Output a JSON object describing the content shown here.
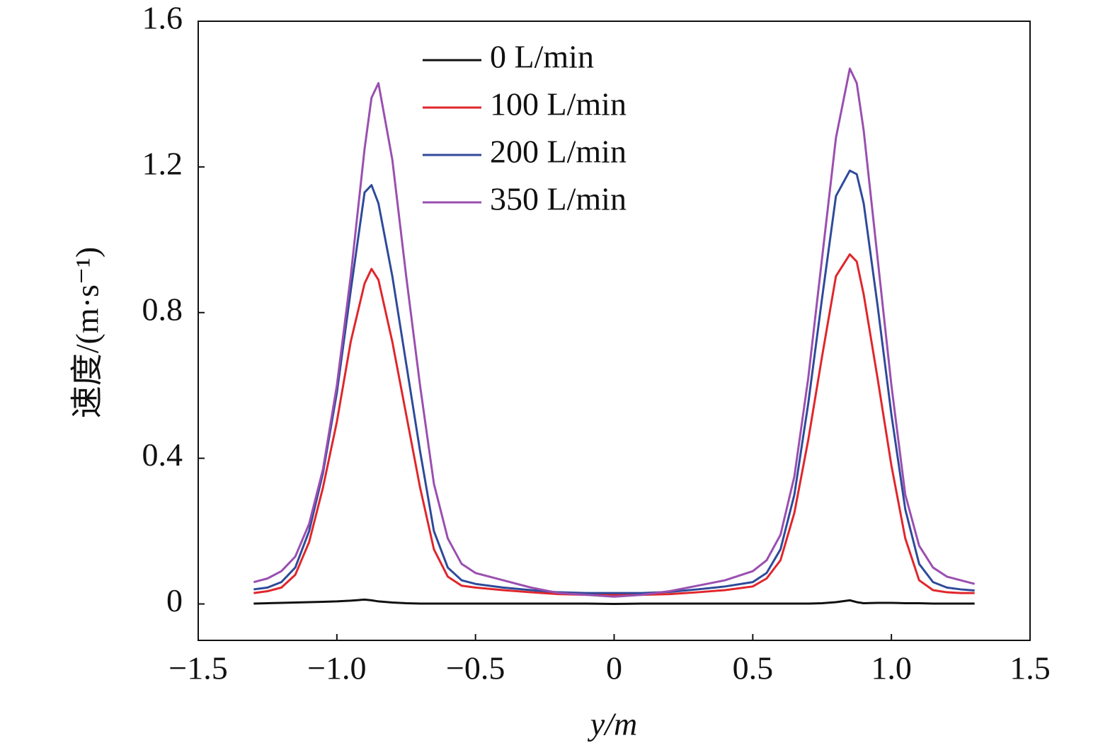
{
  "chart_data": {
    "type": "line",
    "xlabel": "y/m",
    "ylabel": "速度/(m·s⁻¹)",
    "xlim": [
      -1.5,
      1.5
    ],
    "ylim": [
      -0.1,
      1.6
    ],
    "xticks": [
      {
        "value": -1.5,
        "label": "−1.5"
      },
      {
        "value": -1.0,
        "label": "−1.0"
      },
      {
        "value": -0.5,
        "label": "−0.5"
      },
      0,
      0.5,
      {
        "value": 1.0,
        "label": "1.0"
      },
      1.5
    ],
    "yticks": [
      0,
      0.4,
      0.8,
      1.2,
      1.6
    ],
    "grid": false,
    "legend_loc": "upper left",
    "x": [
      -1.3,
      -1.25,
      -1.2,
      -1.15,
      -1.1,
      -1.05,
      -1.0,
      -0.95,
      -0.9,
      -0.875,
      -0.85,
      -0.8,
      -0.75,
      -0.7,
      -0.65,
      -0.6,
      -0.55,
      -0.5,
      -0.4,
      -0.3,
      -0.2,
      -0.1,
      0,
      0.1,
      0.2,
      0.3,
      0.4,
      0.5,
      0.55,
      0.6,
      0.65,
      0.7,
      0.75,
      0.8,
      0.85,
      0.875,
      0.9,
      0.95,
      1.0,
      1.05,
      1.1,
      1.15,
      1.2,
      1.25,
      1.3
    ],
    "series": [
      {
        "name": "0 L/min",
        "color": "#111111",
        "values": [
          0.001,
          0.002,
          0.003,
          0.004,
          0.005,
          0.006,
          0.007,
          0.009,
          0.012,
          0.01,
          0.007,
          0.004,
          0.002,
          0.001,
          0.001,
          0.001,
          0.001,
          0.001,
          0.001,
          0.001,
          0.001,
          0.001,
          0,
          0.001,
          0.001,
          0.001,
          0.001,
          0.001,
          0.001,
          0.001,
          0.001,
          0.001,
          0.002,
          0.005,
          0.01,
          0.005,
          0.002,
          0.003,
          0.003,
          0.002,
          0.002,
          0.001,
          0.001,
          0.001,
          0.001
        ]
      },
      {
        "name": "100 L/min",
        "color": "#e0262b",
        "values": [
          0.03,
          0.035,
          0.045,
          0.08,
          0.17,
          0.32,
          0.5,
          0.72,
          0.88,
          0.92,
          0.89,
          0.72,
          0.52,
          0.32,
          0.15,
          0.075,
          0.05,
          0.045,
          0.038,
          0.032,
          0.027,
          0.025,
          0.025,
          0.025,
          0.027,
          0.032,
          0.038,
          0.048,
          0.07,
          0.12,
          0.25,
          0.45,
          0.68,
          0.9,
          0.96,
          0.94,
          0.85,
          0.62,
          0.38,
          0.18,
          0.065,
          0.038,
          0.032,
          0.03,
          0.03
        ]
      },
      {
        "name": "200 L/min",
        "color": "#2e4a9a",
        "values": [
          0.04,
          0.045,
          0.06,
          0.1,
          0.2,
          0.36,
          0.58,
          0.86,
          1.13,
          1.15,
          1.1,
          0.9,
          0.66,
          0.42,
          0.2,
          0.1,
          0.065,
          0.055,
          0.045,
          0.038,
          0.032,
          0.03,
          0.03,
          0.03,
          0.033,
          0.04,
          0.048,
          0.06,
          0.085,
          0.15,
          0.3,
          0.55,
          0.84,
          1.12,
          1.19,
          1.18,
          1.1,
          0.82,
          0.52,
          0.26,
          0.11,
          0.06,
          0.045,
          0.04,
          0.037
        ]
      },
      {
        "name": "350 L/min",
        "color": "#9a4fb0",
        "values": [
          0.06,
          0.07,
          0.09,
          0.13,
          0.22,
          0.37,
          0.6,
          0.9,
          1.25,
          1.39,
          1.43,
          1.22,
          0.9,
          0.6,
          0.33,
          0.18,
          0.11,
          0.085,
          0.065,
          0.045,
          0.03,
          0.025,
          0.02,
          0.025,
          0.035,
          0.05,
          0.065,
          0.09,
          0.12,
          0.19,
          0.35,
          0.62,
          0.95,
          1.28,
          1.47,
          1.43,
          1.3,
          0.95,
          0.6,
          0.3,
          0.16,
          0.1,
          0.075,
          0.065,
          0.055
        ]
      }
    ]
  }
}
